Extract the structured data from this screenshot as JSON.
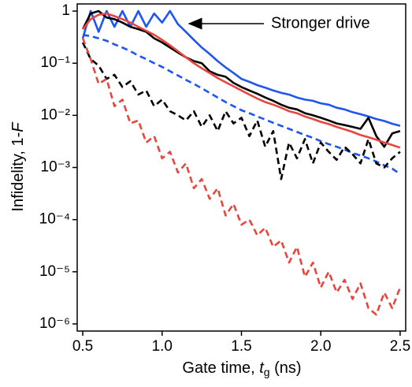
{
  "chart_data": {
    "type": "line",
    "x_label": [
      "Gate time, ",
      "t",
      "g",
      " (ns)"
    ],
    "y_label": [
      "Infidelity, 1-",
      "F"
    ],
    "annotation": "Stronger drive",
    "log_y": true,
    "xlim": [
      0.465,
      2.535
    ],
    "ylim": [
      7.3e-07,
      1.37
    ],
    "xticks": [
      0.5,
      {
        "value": 1,
        "label": "1.0"
      },
      1.5,
      {
        "value": 2,
        "label": "2.0"
      },
      2.5
    ],
    "yticks": [
      {
        "value": 1e-06,
        "label": "10⁻⁶"
      },
      {
        "value": 1e-05,
        "label": "10⁻⁵"
      },
      {
        "value": 0.0001,
        "label": "10⁻⁴"
      },
      {
        "value": 0.001,
        "label": "10⁻³"
      },
      {
        "value": 0.01,
        "label": "10⁻²"
      },
      {
        "value": 0.1,
        "label": "10⁻¹"
      },
      1
    ],
    "x": [
      0.5,
      0.55,
      0.6,
      0.65,
      0.7,
      0.75,
      0.8,
      0.85,
      0.9,
      0.95,
      1.0,
      1.05,
      1.1,
      1.15,
      1.2,
      1.25,
      1.3,
      1.35,
      1.4,
      1.45,
      1.5,
      1.55,
      1.6,
      1.65,
      1.7,
      1.75,
      1.8,
      1.85,
      1.9,
      1.95,
      2.0,
      2.05,
      2.1,
      2.15,
      2.2,
      2.25,
      2.3,
      2.35,
      2.4,
      2.45,
      2.5
    ],
    "series": [
      {
        "color": "#1f55f0",
        "dashed": false,
        "values": [
          0.3,
          1.0,
          0.4,
          1.0,
          0.5,
          1.0,
          0.5,
          1.0,
          0.5,
          0.9,
          0.6,
          1.0,
          0.56,
          0.4,
          0.28,
          0.2,
          0.15,
          0.11,
          0.083,
          0.065,
          0.05,
          0.044,
          0.038,
          0.034,
          0.03,
          0.027,
          0.025,
          0.022,
          0.02,
          0.019,
          0.017,
          0.016,
          0.014,
          0.013,
          0.0115,
          0.0105,
          0.0095,
          0.0085,
          0.0078,
          0.0069,
          0.0063
        ]
      },
      {
        "color": "#000000",
        "dashed": false,
        "values": [
          0.45,
          0.9,
          1.0,
          0.75,
          0.7,
          0.6,
          0.5,
          0.45,
          0.4,
          0.3,
          0.25,
          0.2,
          0.16,
          0.13,
          0.11,
          0.1,
          0.07,
          0.06,
          0.055,
          0.042,
          0.035,
          0.03,
          0.026,
          0.022,
          0.019,
          0.016,
          0.014,
          0.013,
          0.011,
          0.01,
          0.009,
          0.008,
          0.007,
          0.0065,
          0.006,
          0.0055,
          0.009,
          0.004,
          0.0025,
          0.0045,
          0.005
        ]
      },
      {
        "color": "#e8453c",
        "dashed": false,
        "values": [
          0.45,
          0.7,
          0.85,
          0.9,
          0.8,
          0.7,
          0.6,
          0.5,
          0.42,
          0.35,
          0.28,
          0.22,
          0.17,
          0.13,
          0.1,
          0.08,
          0.065,
          0.052,
          0.043,
          0.036,
          0.03,
          0.025,
          0.021,
          0.018,
          0.016,
          0.014,
          0.012,
          0.011,
          0.0095,
          0.0085,
          0.0075,
          0.0068,
          0.006,
          0.0054,
          0.0048,
          0.0042,
          0.0038,
          0.0034,
          0.003,
          0.0027,
          0.0024
        ]
      },
      {
        "color": "#1f55f0",
        "dashed": true,
        "values": [
          0.35,
          0.33,
          0.3,
          0.27,
          0.23,
          0.2,
          0.17,
          0.14,
          0.12,
          0.1,
          0.085,
          0.07,
          0.058,
          0.048,
          0.04,
          0.033,
          0.027,
          0.022,
          0.018,
          0.015,
          0.0125,
          0.011,
          0.0095,
          0.0083,
          0.0072,
          0.0063,
          0.0055,
          0.0048,
          0.0042,
          0.0037,
          0.0032,
          0.0028,
          0.0025,
          0.0022,
          0.0019,
          0.0017,
          0.0015,
          0.0013,
          0.0011,
          0.00095,
          0.00075
        ]
      },
      {
        "color": "#000000",
        "dashed": true,
        "values": [
          0.25,
          0.12,
          0.09,
          0.05,
          0.06,
          0.035,
          0.045,
          0.025,
          0.03,
          0.015,
          0.02,
          0.012,
          0.01,
          0.008,
          0.012,
          0.006,
          0.01,
          0.005,
          0.012,
          0.007,
          0.009,
          0.004,
          0.008,
          0.0025,
          0.005,
          0.0006,
          0.003,
          0.0015,
          0.0035,
          0.0012,
          0.003,
          0.002,
          0.0014,
          0.0025,
          0.0018,
          0.0012,
          0.0035,
          0.0012,
          0.001,
          0.0015,
          0.002
        ]
      },
      {
        "color": "#e8453c",
        "dashed": true,
        "values": [
          0.3,
          0.12,
          0.04,
          0.05,
          0.015,
          0.02,
          0.007,
          0.008,
          0.003,
          0.004,
          0.0015,
          0.002,
          0.0008,
          0.0012,
          0.0004,
          0.0006,
          0.00025,
          0.0004,
          0.00012,
          0.0002,
          8e-05,
          0.0001,
          5e-05,
          7e-05,
          3e-05,
          4e-05,
          1.5e-05,
          3e-05,
          8e-06,
          1.5e-05,
          5e-06,
          1e-05,
          4e-06,
          7e-06,
          3e-06,
          6e-06,
          2e-06,
          1.5e-06,
          4e-06,
          2e-06,
          5e-06
        ]
      }
    ]
  }
}
